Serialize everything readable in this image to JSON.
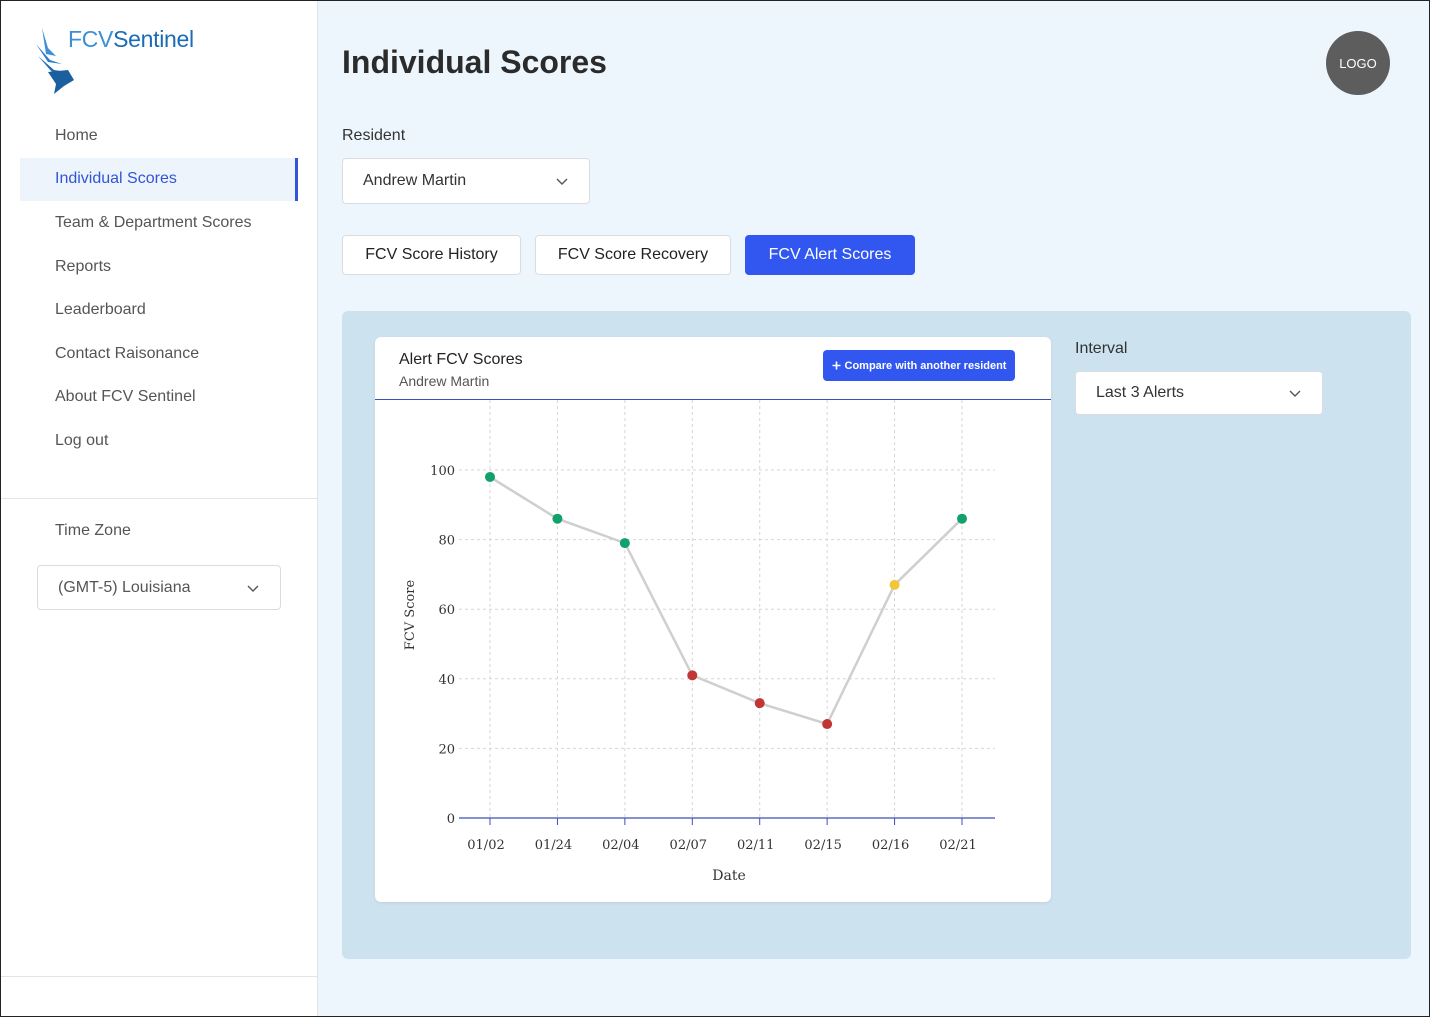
{
  "brand": {
    "name_part1": "FCV",
    "name_part2": "Sentinel"
  },
  "sidebar": {
    "items": [
      {
        "label": "Home",
        "active": false
      },
      {
        "label": "Individual Scores",
        "active": true
      },
      {
        "label": "Team & Department Scores",
        "active": false
      },
      {
        "label": "Reports",
        "active": false
      },
      {
        "label": "Leaderboard",
        "active": false
      },
      {
        "label": "Contact Raisonance",
        "active": false
      },
      {
        "label": "About FCV Sentinel",
        "active": false
      },
      {
        "label": "Log out",
        "active": false
      }
    ],
    "timezone": {
      "label": "Time Zone",
      "value": "(GMT-5) Louisiana"
    }
  },
  "header": {
    "title": "Individual Scores",
    "logo_text": "LOGO"
  },
  "resident": {
    "label": "Resident",
    "value": "Andrew Martin"
  },
  "tabs": [
    {
      "label": "FCV Score History",
      "active": false
    },
    {
      "label": "FCV Score Recovery",
      "active": false
    },
    {
      "label": "FCV Alert Scores",
      "active": true
    }
  ],
  "card": {
    "title": "Alert FCV Scores",
    "subtitle": "Andrew Martin",
    "compare_label": "Compare with another resident"
  },
  "interval": {
    "label": "Interval",
    "value": "Last 3 Alerts"
  },
  "colors": {
    "accent": "#3157f0",
    "good": "#12a06b",
    "warn": "#f0c63a",
    "bad": "#c23535",
    "line": "#cfcfcf"
  },
  "chart_data": {
    "type": "line",
    "x": [
      "01/02",
      "01/24",
      "02/04",
      "02/07",
      "02/11",
      "02/15",
      "02/16",
      "02/21"
    ],
    "series": [
      {
        "values": [
          98,
          86,
          79,
          41,
          33,
          27,
          67,
          86
        ],
        "point_status": [
          "good",
          "good",
          "good",
          "bad",
          "bad",
          "bad",
          "warn",
          "good"
        ]
      }
    ],
    "xlabel": "Date",
    "ylabel": "FCV Score",
    "ylim": [
      0,
      100
    ],
    "yticks": [
      0,
      20,
      40,
      60,
      80,
      100
    ],
    "grid": true
  }
}
